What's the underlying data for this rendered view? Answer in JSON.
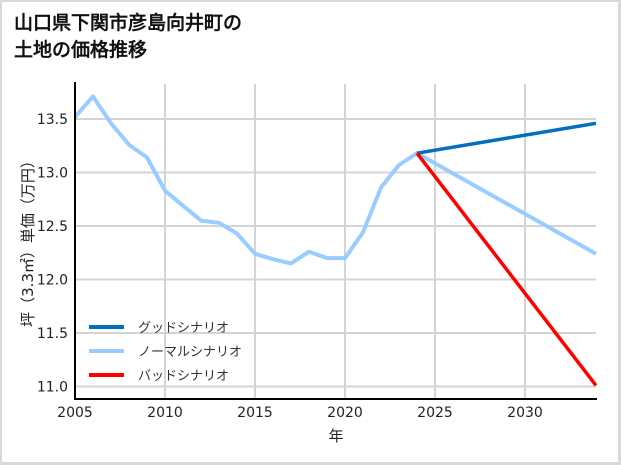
{
  "title": {
    "line1": "山口県下関市彦島向井町の",
    "line2": "土地の価格推移"
  },
  "colors": {
    "good": "#0070c0",
    "normal": "#99ccff",
    "bad": "#ff0000",
    "grid": "#d4d4d4",
    "axis": "#000000",
    "border": "#d9d9d9"
  },
  "legend": {
    "items": [
      {
        "label": "グッドシナリオ",
        "color": "#0070c0"
      },
      {
        "label": "ノーマルシナリオ",
        "color": "#99ccff"
      },
      {
        "label": "バッドシナリオ",
        "color": "#ff0000"
      }
    ]
  },
  "axes": {
    "xlabel": "年",
    "ylabel": "坪（3.3㎡）単価（万円）",
    "xticks": [
      "2005",
      "2010",
      "2015",
      "2020",
      "2025",
      "2030"
    ],
    "yticks": [
      "11.0",
      "11.5",
      "12.0",
      "12.5",
      "13.0",
      "13.5"
    ]
  },
  "chart_data": {
    "type": "line",
    "title": "山口県下関市彦島向井町の土地の価格推移",
    "xlabel": "年",
    "ylabel": "坪（3.3㎡）単価（万円）",
    "xlim": [
      2005,
      2034
    ],
    "ylim": [
      10.9,
      13.84
    ],
    "grid": true,
    "legend_position": "lower left",
    "x": [
      2005,
      2006,
      2007,
      2008,
      2009,
      2010,
      2011,
      2012,
      2013,
      2014,
      2015,
      2016,
      2017,
      2018,
      2019,
      2020,
      2021,
      2022,
      2023,
      2024
    ],
    "series": [
      {
        "name": "ノーマルシナリオ",
        "color": "#99ccff",
        "x": [
          2005,
          2006,
          2007,
          2008,
          2009,
          2010,
          2011,
          2012,
          2013,
          2014,
          2015,
          2016,
          2017,
          2018,
          2019,
          2020,
          2021,
          2022,
          2023,
          2024,
          2034
        ],
        "values": [
          13.52,
          13.71,
          13.46,
          13.26,
          13.14,
          12.83,
          12.69,
          12.55,
          12.53,
          12.43,
          12.24,
          12.19,
          12.15,
          12.26,
          12.2,
          12.2,
          12.44,
          12.86,
          13.07,
          13.18,
          12.24
        ]
      },
      {
        "name": "グッドシナリオ",
        "color": "#0070c0",
        "x": [
          2024,
          2034
        ],
        "values": [
          13.18,
          13.46
        ]
      },
      {
        "name": "バッドシナリオ",
        "color": "#ff0000",
        "x": [
          2024,
          2034
        ],
        "values": [
          13.18,
          11.01
        ]
      }
    ]
  }
}
